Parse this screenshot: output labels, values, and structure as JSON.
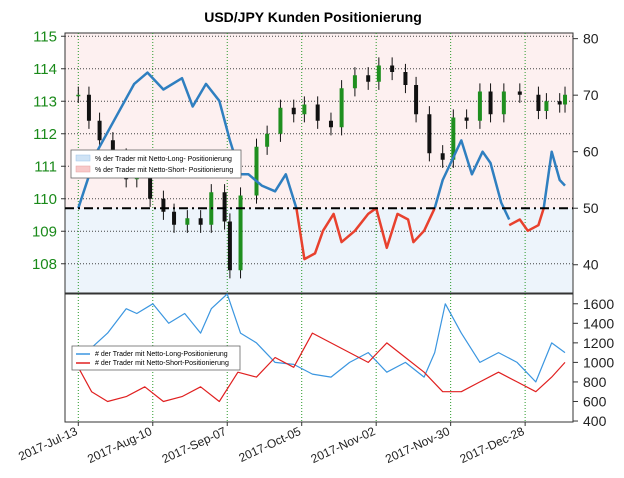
{
  "chart_data": [
    {
      "type": "line",
      "title": "USD/JPY Kunden Positionierung",
      "x_tick_labels": [
        "2017-Jul-13",
        "2017-Aug-10",
        "2017-Sep-07",
        "2017-Oct-05",
        "2017-Nov-02",
        "2017-Nov-30",
        "2017-Dec-28"
      ],
      "price_axis": {
        "ticks": [
          108,
          109,
          110,
          111,
          112,
          113,
          114,
          115
        ],
        "range": [
          107.1,
          115.1
        ]
      },
      "percent_axis": {
        "ticks": [
          40,
          50,
          60,
          70,
          80
        ],
        "range": [
          35,
          81
        ]
      },
      "reference_line": 50,
      "legend": {
        "placement": "left",
        "entries": [
          {
            "label": "% der Trader mit Netto-Long- Positionierung",
            "color": "#cfe3f5"
          },
          {
            "label": "% der Trader mit Netto-Short- Positionierung",
            "color": "#f7c9c9"
          }
        ]
      },
      "series": [
        {
          "kind": "candlestick-close",
          "axis": "price",
          "color": "#1f8f1f",
          "x": [
            "2017-07-13",
            "2017-07-17",
            "2017-07-21",
            "2017-07-26",
            "2017-07-31",
            "2017-08-04",
            "2017-08-09",
            "2017-08-14",
            "2017-08-18",
            "2017-08-23",
            "2017-08-28",
            "2017-09-01",
            "2017-09-06",
            "2017-09-08",
            "2017-09-12",
            "2017-09-18",
            "2017-09-22",
            "2017-09-27",
            "2017-10-02",
            "2017-10-06",
            "2017-10-11",
            "2017-10-16",
            "2017-10-20",
            "2017-10-25",
            "2017-10-30",
            "2017-11-03",
            "2017-11-08",
            "2017-11-13",
            "2017-11-17",
            "2017-11-22",
            "2017-11-27",
            "2017-12-01",
            "2017-12-06",
            "2017-12-11",
            "2017-12-15",
            "2017-12-20",
            "2017-12-26",
            "2018-01-02",
            "2018-01-05",
            "2018-01-10",
            "2018-01-12"
          ],
          "values": [
            113.2,
            112.4,
            111.8,
            111.3,
            110.6,
            110.8,
            110.0,
            109.6,
            109.2,
            109.4,
            109.2,
            110.2,
            109.3,
            107.8,
            110.1,
            111.6,
            112.0,
            112.8,
            112.6,
            112.9,
            112.4,
            112.2,
            113.4,
            113.8,
            113.6,
            114.1,
            113.9,
            113.5,
            112.6,
            111.4,
            111.2,
            112.5,
            112.4,
            113.3,
            112.6,
            113.3,
            113.2,
            112.7,
            113.0,
            112.9,
            113.2
          ]
        },
        {
          "kind": "line",
          "name": "% der Trader mit Netto-Long- Positionierung",
          "axis": "percent",
          "color": "#2f7fc0",
          "x": [
            "2017-07-13",
            "2017-07-20",
            "2017-07-27",
            "2017-08-03",
            "2017-08-08",
            "2017-08-14",
            "2017-08-21",
            "2017-08-25",
            "2017-08-30",
            "2017-09-04",
            "2017-09-08",
            "2017-09-12",
            "2017-09-15",
            "2017-09-20",
            "2017-09-25",
            "2017-09-29",
            "2017-10-03"
          ],
          "values": [
            50,
            60,
            66,
            72,
            74,
            71,
            73,
            68,
            72,
            69,
            62,
            56,
            56,
            54,
            53,
            56,
            50
          ]
        },
        {
          "kind": "line",
          "name": "% der Trader mit Netto-Short- Positionierung",
          "axis": "percent",
          "color": "#e8412e",
          "x": [
            "2017-10-03",
            "2017-10-06",
            "2017-10-10",
            "2017-10-13",
            "2017-10-17",
            "2017-10-20",
            "2017-10-25",
            "2017-10-30",
            "2017-11-02",
            "2017-11-06",
            "2017-11-10",
            "2017-11-14",
            "2017-11-16",
            "2017-11-20",
            "2017-11-24"
          ],
          "values": [
            50,
            41,
            42,
            46,
            49,
            44,
            46,
            49,
            50,
            43,
            49,
            48,
            44,
            46,
            50
          ]
        },
        {
          "kind": "line",
          "name": "% der Trader mit Netto-Long- Positionierung",
          "axis": "percent",
          "color": "#2f7fc0",
          "x": [
            "2017-11-24",
            "2017-11-27",
            "2017-11-30",
            "2017-12-04",
            "2017-12-08",
            "2017-12-12",
            "2017-12-15",
            "2017-12-19",
            "2017-12-22"
          ],
          "values": [
            50,
            55,
            58,
            62,
            56,
            60,
            58,
            51,
            48
          ]
        },
        {
          "kind": "line",
          "name": "% der Trader mit Netto-Short- Positionierung",
          "axis": "percent",
          "color": "#e8412e",
          "x": [
            "2017-12-22",
            "2017-12-26",
            "2017-12-29",
            "2018-01-02",
            "2018-01-04"
          ],
          "values": [
            47,
            48,
            46,
            47,
            50
          ]
        },
        {
          "kind": "line",
          "name": "% der Trader mit Netto-Long- Positionierung",
          "axis": "percent",
          "color": "#2f7fc0",
          "x": [
            "2018-01-04",
            "2018-01-07",
            "2018-01-10",
            "2018-01-12"
          ],
          "values": [
            50,
            60,
            55,
            54
          ]
        }
      ]
    },
    {
      "type": "line",
      "y_axis": {
        "ticks": [
          400,
          600,
          800,
          1000,
          1200,
          1400,
          1600
        ],
        "range": [
          390,
          1700
        ]
      },
      "legend": {
        "placement": "left",
        "entries": [
          {
            "label": "# der Trader mit Netto-Long-Positionierung",
            "color": "#3b96e0"
          },
          {
            "label": "# der Trader mit Netto-Short-Positionierung",
            "color": "#e02020"
          }
        ]
      },
      "series": [
        {
          "name": "# der Trader mit Netto-Long-Positionierung",
          "color": "#3b96e0",
          "x": [
            "2017-07-13",
            "2017-07-18",
            "2017-07-24",
            "2017-07-31",
            "2017-08-04",
            "2017-08-10",
            "2017-08-16",
            "2017-08-22",
            "2017-08-28",
            "2017-09-01",
            "2017-09-07",
            "2017-09-12",
            "2017-09-18",
            "2017-09-25",
            "2017-10-02",
            "2017-10-09",
            "2017-10-16",
            "2017-10-23",
            "2017-10-30",
            "2017-11-06",
            "2017-11-13",
            "2017-11-20",
            "2017-11-24",
            "2017-11-28",
            "2017-12-04",
            "2017-12-11",
            "2017-12-18",
            "2017-12-25",
            "2018-01-01",
            "2018-01-07",
            "2018-01-12"
          ],
          "values": [
            1000,
            1150,
            1300,
            1550,
            1500,
            1600,
            1400,
            1500,
            1300,
            1550,
            1700,
            1300,
            1200,
            1000,
            980,
            880,
            850,
            1000,
            1100,
            900,
            1000,
            850,
            1100,
            1600,
            1300,
            1000,
            1100,
            1000,
            800,
            1200,
            1100
          ]
        },
        {
          "name": "# der Trader mit Netto-Short-Positionierung",
          "color": "#e02020",
          "x": [
            "2017-07-13",
            "2017-07-18",
            "2017-07-24",
            "2017-07-31",
            "2017-08-07",
            "2017-08-14",
            "2017-08-21",
            "2017-08-28",
            "2017-09-04",
            "2017-09-11",
            "2017-09-18",
            "2017-09-25",
            "2017-10-02",
            "2017-10-09",
            "2017-10-16",
            "2017-10-23",
            "2017-10-30",
            "2017-11-06",
            "2017-11-13",
            "2017-11-20",
            "2017-11-27",
            "2017-12-04",
            "2017-12-11",
            "2017-12-18",
            "2017-12-25",
            "2018-01-01",
            "2018-01-07",
            "2018-01-12"
          ],
          "values": [
            950,
            700,
            600,
            650,
            750,
            600,
            650,
            750,
            600,
            900,
            850,
            1050,
            950,
            1300,
            1200,
            1100,
            1000,
            1200,
            1050,
            900,
            700,
            700,
            800,
            900,
            800,
            700,
            850,
            1000
          ]
        }
      ]
    }
  ]
}
